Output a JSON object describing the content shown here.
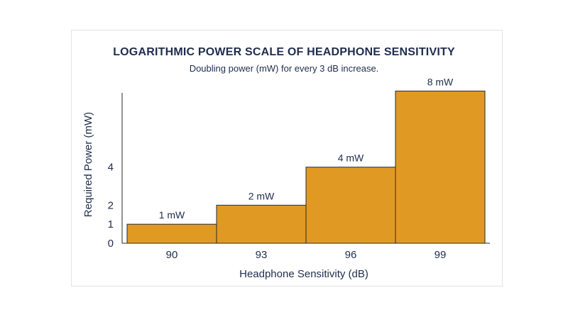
{
  "chart_data": {
    "type": "bar",
    "title": "LOGARITHMIC POWER SCALE OF HEADPHONE SENSITIVITY",
    "subtitle": "Doubling power (mW) for every 3 dB increase.",
    "xlabel": "Headphone Sensitivity (dB)",
    "ylabel": "Required Power (mW)",
    "categories": [
      "90",
      "93",
      "96",
      "99"
    ],
    "values": [
      1,
      2,
      4,
      8
    ],
    "data_labels": [
      "1 mW",
      "2 mW",
      "4 mW",
      "8 mW"
    ],
    "yticks": [
      0,
      1,
      2,
      4
    ],
    "ylim": [
      0,
      8.2
    ],
    "grid": false,
    "bar_color": "#E09A24",
    "bar_edge_color": "#2a2a2a",
    "text_color": "#1f2d4d"
  }
}
